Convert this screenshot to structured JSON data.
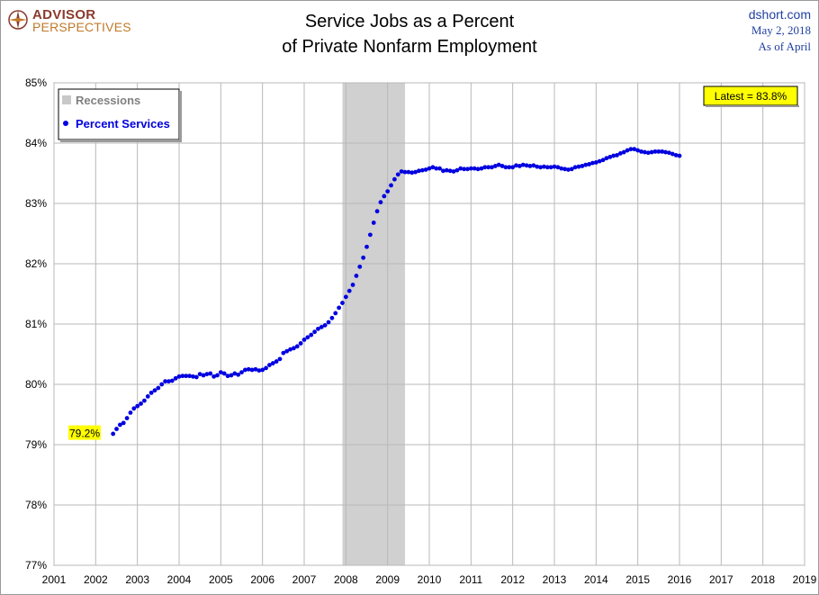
{
  "logo": {
    "line1": "ADVISOR",
    "line2": "PERSPECTIVES"
  },
  "source": {
    "site": "dshort.com",
    "date": "May 2, 2018",
    "asof": "As of April"
  },
  "colors": {
    "series": "#0000e0",
    "recession": "#d0d0d0",
    "grid": "#b8b8b8",
    "callout": "#ffff00",
    "source_text": "#1f3fa0"
  },
  "chart_data": {
    "type": "scatter",
    "title": "Service Jobs as a Percent",
    "subtitle": "of Private Nonfarm Employment",
    "xlabel": "",
    "ylabel": "",
    "xlim": [
      2001,
      2019
    ],
    "ylim": [
      77,
      85
    ],
    "x_ticks": [
      "2001",
      "2002",
      "2003",
      "2004",
      "2005",
      "2006",
      "2007",
      "2008",
      "2009",
      "2010",
      "2011",
      "2012",
      "2013",
      "2014",
      "2015",
      "2016",
      "2017",
      "2018",
      "2019"
    ],
    "y_ticks": [
      "77%",
      "78%",
      "79%",
      "80%",
      "81%",
      "82%",
      "83%",
      "84%",
      "85%"
    ],
    "grid": true,
    "legend_position": "top-left",
    "recessions": [
      {
        "name": "Recessions",
        "start": 2007.917,
        "end": 2009.417
      }
    ],
    "annotations": {
      "first": {
        "label": "79.2%",
        "x": 2002.417,
        "y": 79.2
      },
      "latest": {
        "label": "Latest = 83.8%",
        "position": "top-right"
      }
    },
    "series": [
      {
        "name": "Percent Services",
        "x_start": 2002.417,
        "x_step": 0.08333,
        "values": [
          79.18,
          79.26,
          79.33,
          79.36,
          79.44,
          79.53,
          79.6,
          79.64,
          79.68,
          79.73,
          79.8,
          79.86,
          79.9,
          79.94,
          80.0,
          80.05,
          80.05,
          80.06,
          80.1,
          80.13,
          80.14,
          80.14,
          80.14,
          80.13,
          80.12,
          80.17,
          80.15,
          80.17,
          80.18,
          80.13,
          80.15,
          80.2,
          80.18,
          80.14,
          80.15,
          80.18,
          80.16,
          80.2,
          80.24,
          80.25,
          80.24,
          80.25,
          80.23,
          80.24,
          80.27,
          80.32,
          80.35,
          80.38,
          80.42,
          80.52,
          80.55,
          80.58,
          80.6,
          80.63,
          80.68,
          80.74,
          80.78,
          80.82,
          80.87,
          80.92,
          80.95,
          80.98,
          81.03,
          81.1,
          81.18,
          81.27,
          81.35,
          81.45,
          81.55,
          81.65,
          81.8,
          81.95,
          82.1,
          82.28,
          82.48,
          82.68,
          82.87,
          83.02,
          83.12,
          83.2,
          83.3,
          83.4,
          83.48,
          83.53,
          83.52,
          83.52,
          83.51,
          83.52,
          83.54,
          83.55,
          83.56,
          83.58,
          83.6,
          83.58,
          83.58,
          83.54,
          83.55,
          83.54,
          83.53,
          83.55,
          83.58,
          83.57,
          83.57,
          83.58,
          83.58,
          83.57,
          83.58,
          83.6,
          83.6,
          83.6,
          83.62,
          83.64,
          83.62,
          83.6,
          83.6,
          83.6,
          83.63,
          83.62,
          83.64,
          83.63,
          83.62,
          83.63,
          83.61,
          83.6,
          83.61,
          83.6,
          83.6,
          83.61,
          83.6,
          83.58,
          83.57,
          83.56,
          83.57,
          83.6,
          83.61,
          83.62,
          83.64,
          83.65,
          83.67,
          83.68,
          83.7,
          83.72,
          83.75,
          83.77,
          83.79,
          83.8,
          83.83,
          83.85,
          83.88,
          83.9,
          83.9,
          83.88,
          83.86,
          83.85,
          83.84,
          83.85,
          83.86,
          83.86,
          83.86,
          83.85,
          83.84,
          83.82,
          83.8,
          83.79
        ]
      }
    ]
  }
}
